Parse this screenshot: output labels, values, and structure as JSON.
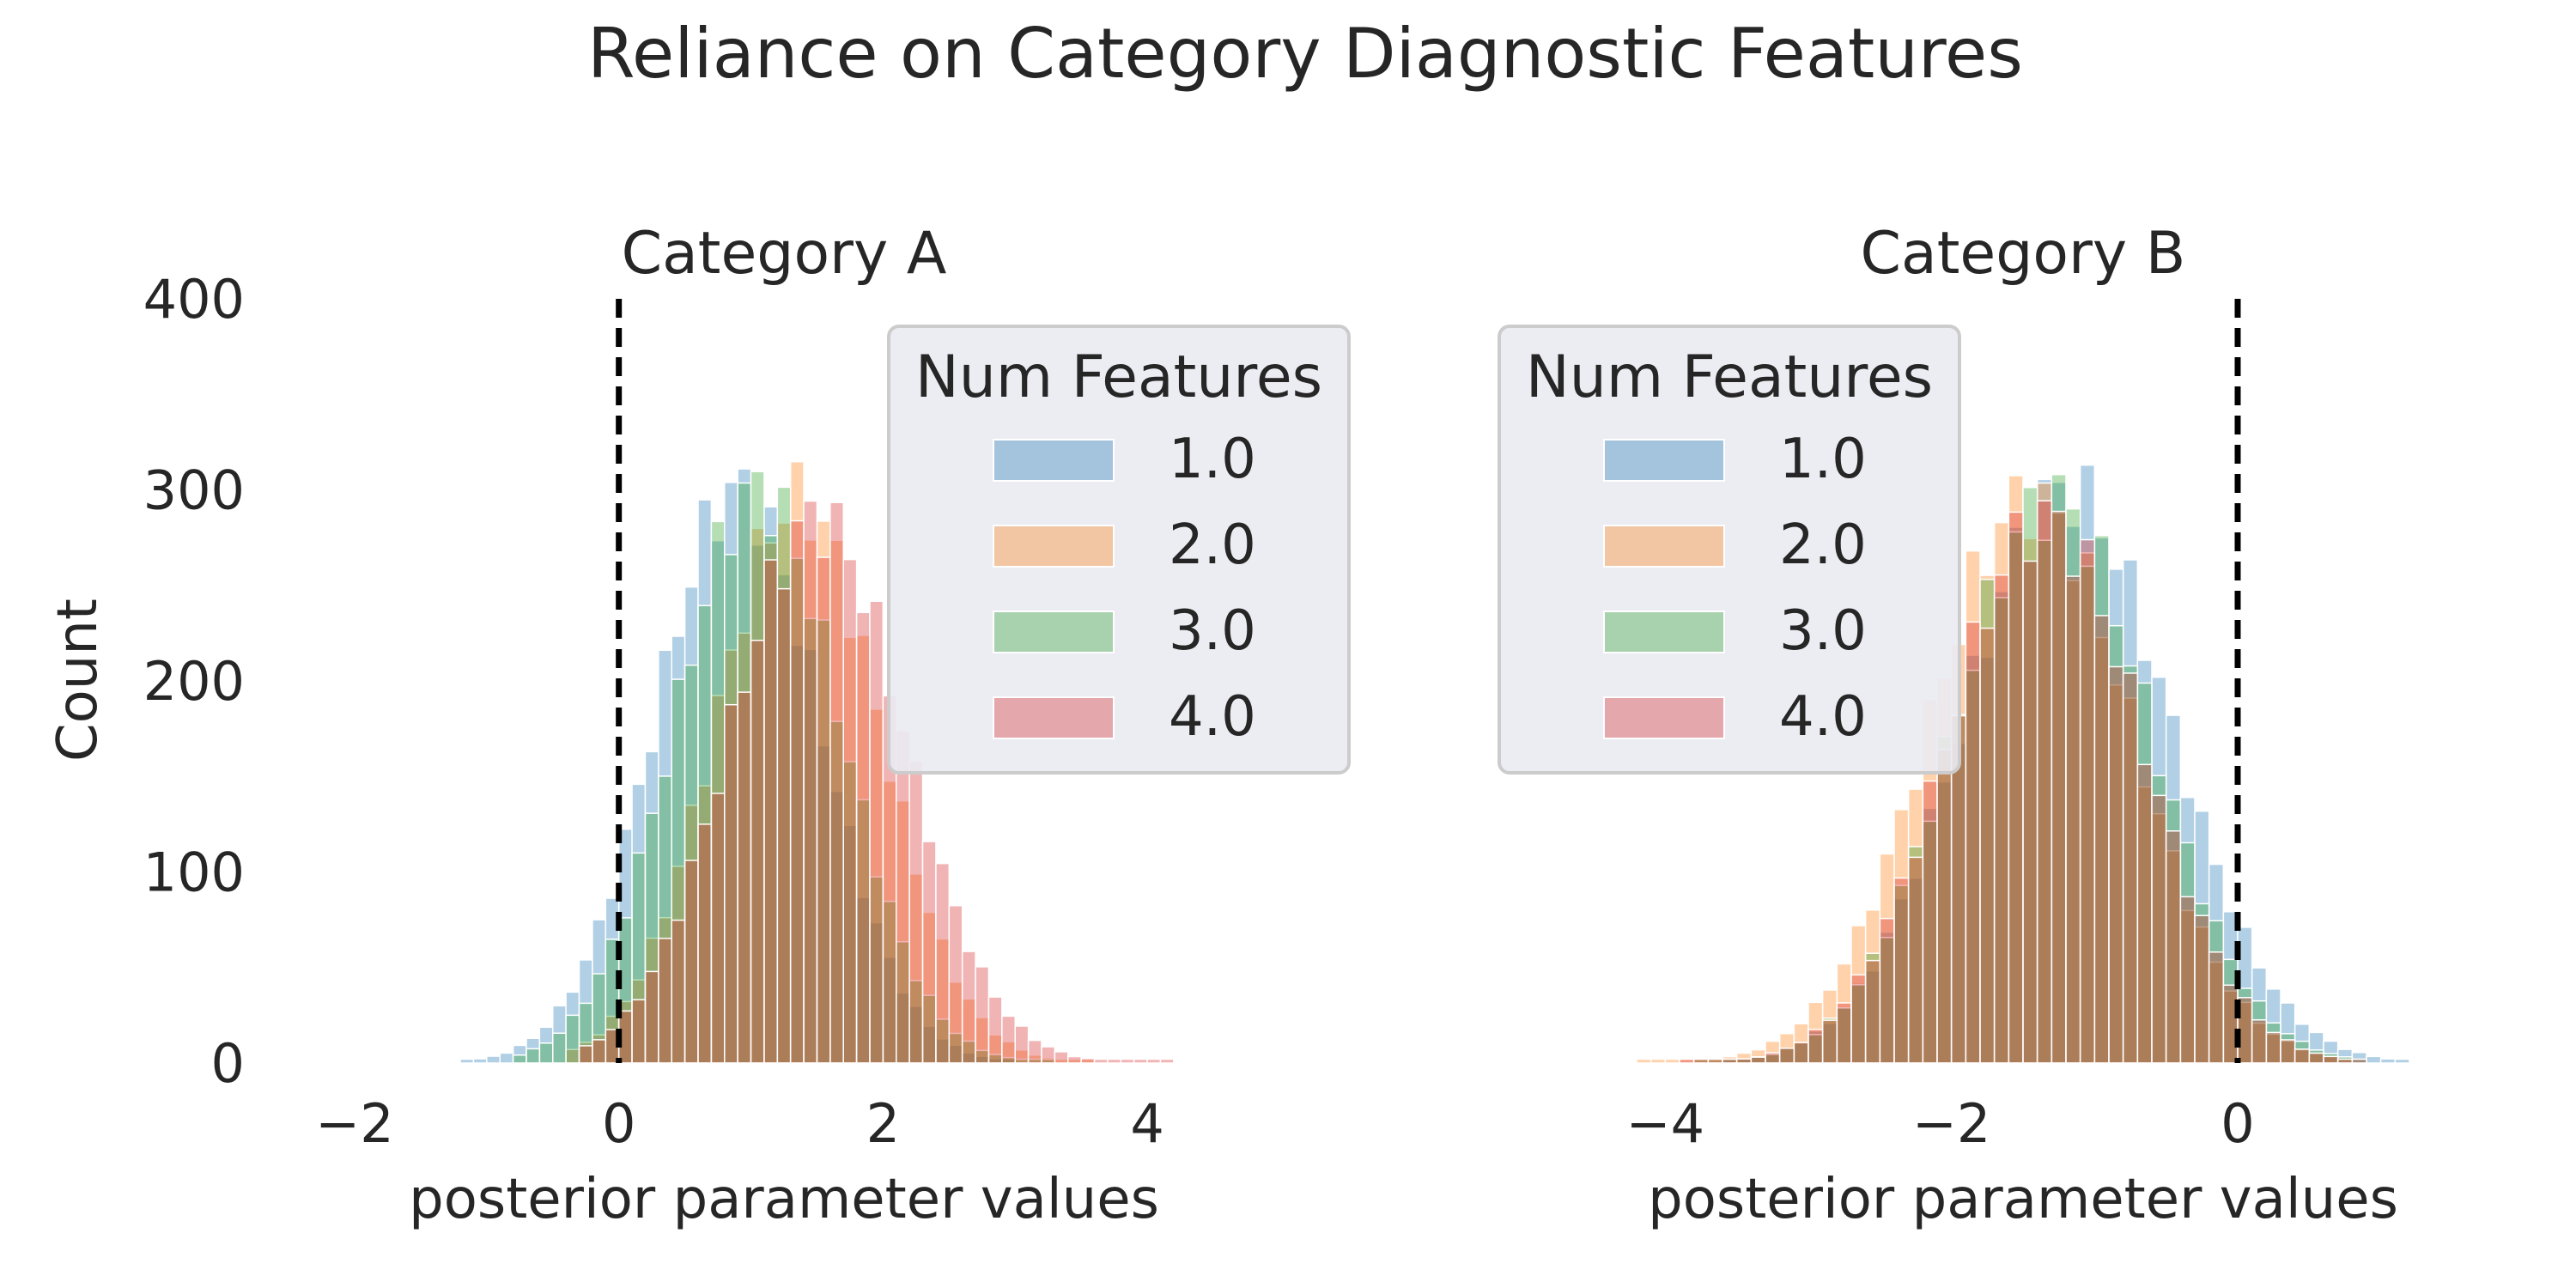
{
  "chart_data": {
    "type": "histogram",
    "title": "Reliance on Category Diagnostic Features",
    "ylabel": "Count",
    "legend_title": "Num Features",
    "colors": {
      "1.0": "#1f77b4",
      "2.0": "#ff7f0e",
      "3.0": "#2ca02c",
      "4.0": "#d62728"
    },
    "bar_alpha": 0.35,
    "panels": [
      {
        "title": "Category A",
        "xlabel": "posterior parameter values",
        "xlim": [
          -2,
          4.5
        ],
        "ylim": [
          0,
          400
        ],
        "xticks": [
          "−2",
          "0",
          "2",
          "4"
        ],
        "yticks": [
          "0",
          "100",
          "200",
          "300",
          "400"
        ],
        "reference_line_x": 0,
        "legend_position": "upper-right",
        "series": [
          {
            "name": "1.0",
            "mean": 0.9,
            "sd": 0.62,
            "peak": 300,
            "bin_start": -1.2,
            "bin_end": 3.0,
            "bin_width": 0.1
          },
          {
            "name": "2.0",
            "mean": 1.35,
            "sd": 0.62,
            "peak": 295,
            "bin_start": -0.4,
            "bin_end": 3.6,
            "bin_width": 0.1
          },
          {
            "name": "3.0",
            "mean": 1.05,
            "sd": 0.62,
            "peak": 300,
            "bin_start": -0.8,
            "bin_end": 3.3,
            "bin_width": 0.1
          },
          {
            "name": "4.0",
            "mean": 1.5,
            "sd": 0.66,
            "peak": 285,
            "bin_start": -0.3,
            "bin_end": 4.2,
            "bin_width": 0.1
          }
        ]
      },
      {
        "title": "Category B",
        "xlabel": "posterior parameter values",
        "xlim": [
          -4.5,
          1.5
        ],
        "ylim": [
          0,
          400
        ],
        "xticks": [
          "−4",
          "−2",
          "0"
        ],
        "yticks": [],
        "reference_line_x": 0,
        "legend_position": "upper-left",
        "series": [
          {
            "name": "1.0",
            "mean": -1.2,
            "sd": 0.72,
            "peak": 300,
            "bin_start": -3.6,
            "bin_end": 1.2,
            "bin_width": 0.1
          },
          {
            "name": "2.0",
            "mean": -1.45,
            "sd": 0.7,
            "peak": 295,
            "bin_start": -4.2,
            "bin_end": 0.8,
            "bin_width": 0.1
          },
          {
            "name": "3.0",
            "mean": -1.3,
            "sd": 0.68,
            "peak": 295,
            "bin_start": -3.8,
            "bin_end": 0.9,
            "bin_width": 0.1
          },
          {
            "name": "4.0",
            "mean": -1.35,
            "sd": 0.67,
            "peak": 285,
            "bin_start": -3.9,
            "bin_end": 0.9,
            "bin_width": 0.1
          }
        ]
      }
    ]
  }
}
